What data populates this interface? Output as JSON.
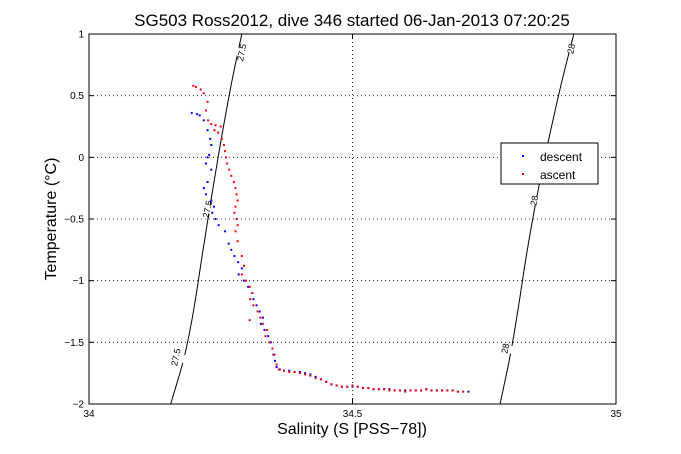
{
  "chart_data": {
    "type": "scatter",
    "title": "SG503 Ross2012, dive 346 started 06-Jan-2013 07:20:25",
    "xlabel": "Salinity (S [PSS−78])",
    "ylabel": "Temperature (°C)",
    "xlim": [
      34,
      35
    ],
    "ylim": [
      -2,
      1
    ],
    "x_ticks": [
      "34",
      "34.5",
      "35"
    ],
    "y_ticks": [
      "1",
      "0.5",
      "0",
      "−0.5",
      "−1",
      "−1.5",
      "−2"
    ],
    "x_tick_values": [
      34,
      34.5,
      35
    ],
    "y_tick_values": [
      1,
      0.5,
      0,
      -0.5,
      -1,
      -1.5,
      -2
    ],
    "grid": true,
    "grid_style": "dotted",
    "legend_position": "right",
    "series": [
      {
        "name": "descent",
        "color": "#0000ff",
        "marker": "dot",
        "points": [
          [
            34.195,
            0.36
          ],
          [
            34.205,
            0.35
          ],
          [
            34.21,
            0.34
          ],
          [
            34.218,
            0.3
          ],
          [
            34.225,
            0.22
          ],
          [
            34.23,
            0.15
          ],
          [
            34.232,
            0.1
          ],
          [
            34.228,
            0.02
          ],
          [
            34.225,
            0.0
          ],
          [
            34.222,
            -0.05
          ],
          [
            34.232,
            -0.1
          ],
          [
            34.225,
            -0.2
          ],
          [
            34.218,
            -0.25
          ],
          [
            34.222,
            -0.3
          ],
          [
            34.232,
            -0.35
          ],
          [
            34.237,
            -0.4
          ],
          [
            34.234,
            -0.45
          ],
          [
            34.24,
            -0.5
          ],
          [
            34.246,
            -0.55
          ],
          [
            34.258,
            -0.6
          ],
          [
            34.265,
            -0.7
          ],
          [
            34.27,
            -0.75
          ],
          [
            34.276,
            -0.8
          ],
          [
            34.283,
            -0.85
          ],
          [
            34.29,
            -0.9
          ],
          [
            34.284,
            -0.95
          ],
          [
            34.294,
            -1.0
          ],
          [
            34.302,
            -1.05
          ],
          [
            34.31,
            -1.1
          ],
          [
            34.312,
            -1.15
          ],
          [
            34.318,
            -1.2
          ],
          [
            34.324,
            -1.25
          ],
          [
            34.33,
            -1.3
          ],
          [
            34.326,
            -1.35
          ],
          [
            34.333,
            -1.4
          ],
          [
            34.34,
            -1.45
          ],
          [
            34.345,
            -1.5
          ],
          [
            34.35,
            -1.6
          ],
          [
            34.353,
            -1.65
          ],
          [
            34.356,
            -1.7
          ],
          [
            34.362,
            -1.72
          ],
          [
            34.37,
            -1.73
          ],
          [
            34.38,
            -1.73
          ],
          [
            34.39,
            -1.74
          ],
          [
            34.4,
            -1.74
          ],
          [
            34.41,
            -1.75
          ],
          [
            34.42,
            -1.76
          ],
          [
            34.43,
            -1.78
          ],
          [
            34.44,
            -1.8
          ],
          [
            34.45,
            -1.82
          ],
          [
            34.46,
            -1.84
          ],
          [
            34.47,
            -1.85
          ],
          [
            34.48,
            -1.86
          ],
          [
            34.49,
            -1.86
          ],
          [
            34.5,
            -1.86
          ],
          [
            34.51,
            -1.86
          ],
          [
            34.52,
            -1.87
          ],
          [
            34.53,
            -1.87
          ],
          [
            34.54,
            -1.88
          ],
          [
            34.55,
            -1.88
          ],
          [
            34.56,
            -1.88
          ],
          [
            34.57,
            -1.88
          ],
          [
            34.58,
            -1.89
          ],
          [
            34.59,
            -1.89
          ],
          [
            34.6,
            -1.89
          ],
          [
            34.61,
            -1.89
          ],
          [
            34.62,
            -1.89
          ],
          [
            34.63,
            -1.89
          ],
          [
            34.64,
            -1.88
          ],
          [
            34.65,
            -1.89
          ],
          [
            34.66,
            -1.89
          ],
          [
            34.67,
            -1.89
          ],
          [
            34.68,
            -1.89
          ],
          [
            34.69,
            -1.89
          ],
          [
            34.7,
            -1.9
          ],
          [
            34.72,
            -1.9
          ]
        ]
      },
      {
        "name": "ascent",
        "color": "#ff0000",
        "marker": "dot",
        "points": [
          [
            34.198,
            0.58
          ],
          [
            34.203,
            0.57
          ],
          [
            34.212,
            0.55
          ],
          [
            34.218,
            0.52
          ],
          [
            34.225,
            0.45
          ],
          [
            34.222,
            0.38
          ],
          [
            34.226,
            0.3
          ],
          [
            34.232,
            0.27
          ],
          [
            34.24,
            0.26
          ],
          [
            34.238,
            0.22
          ],
          [
            34.245,
            0.2
          ],
          [
            34.25,
            0.25
          ],
          [
            34.252,
            0.15
          ],
          [
            34.256,
            0.1
          ],
          [
            34.258,
            0.05
          ],
          [
            34.26,
            0.0
          ],
          [
            34.262,
            -0.05
          ],
          [
            34.266,
            -0.1
          ],
          [
            34.27,
            -0.15
          ],
          [
            34.275,
            -0.2
          ],
          [
            34.278,
            -0.25
          ],
          [
            34.28,
            -0.3
          ],
          [
            34.282,
            -0.35
          ],
          [
            34.278,
            -0.4
          ],
          [
            34.276,
            -0.45
          ],
          [
            34.28,
            -0.5
          ],
          [
            34.282,
            -0.55
          ],
          [
            34.278,
            -0.6
          ],
          [
            34.282,
            -0.68
          ],
          [
            34.29,
            -0.8
          ],
          [
            34.294,
            -0.88
          ],
          [
            34.29,
            -0.95
          ],
          [
            34.298,
            -1.0
          ],
          [
            34.305,
            -1.05
          ],
          [
            34.31,
            -1.1
          ],
          [
            34.306,
            -1.15
          ],
          [
            34.312,
            -1.2
          ],
          [
            34.32,
            -1.25
          ],
          [
            34.325,
            -1.3
          ],
          [
            34.33,
            -1.35
          ],
          [
            34.338,
            -1.4
          ],
          [
            34.335,
            -1.45
          ],
          [
            34.342,
            -1.5
          ],
          [
            34.348,
            -1.55
          ],
          [
            34.352,
            -1.6
          ],
          [
            34.356,
            -1.68
          ],
          [
            34.36,
            -1.72
          ],
          [
            34.37,
            -1.73
          ],
          [
            34.38,
            -1.74
          ],
          [
            34.39,
            -1.74
          ],
          [
            34.4,
            -1.75
          ],
          [
            34.41,
            -1.76
          ],
          [
            34.42,
            -1.77
          ],
          [
            34.43,
            -1.79
          ],
          [
            34.44,
            -1.8
          ],
          [
            34.45,
            -1.82
          ],
          [
            34.46,
            -1.84
          ],
          [
            34.47,
            -1.85
          ],
          [
            34.48,
            -1.86
          ],
          [
            34.49,
            -1.86
          ],
          [
            34.5,
            -1.85
          ],
          [
            34.51,
            -1.86
          ],
          [
            34.52,
            -1.87
          ],
          [
            34.53,
            -1.87
          ],
          [
            34.54,
            -1.88
          ],
          [
            34.55,
            -1.88
          ],
          [
            34.56,
            -1.88
          ],
          [
            34.57,
            -1.89
          ],
          [
            34.58,
            -1.89
          ],
          [
            34.59,
            -1.89
          ],
          [
            34.6,
            -1.9
          ],
          [
            34.61,
            -1.89
          ],
          [
            34.62,
            -1.89
          ],
          [
            34.63,
            -1.89
          ],
          [
            34.64,
            -1.88
          ],
          [
            34.65,
            -1.89
          ],
          [
            34.66,
            -1.89
          ],
          [
            34.67,
            -1.89
          ],
          [
            34.68,
            -1.89
          ],
          [
            34.69,
            -1.89
          ],
          [
            34.7,
            -1.9
          ],
          [
            34.71,
            -1.9
          ],
          [
            34.305,
            -1.32
          ]
        ]
      }
    ],
    "contours": [
      {
        "level": "27.5",
        "color": "#000000",
        "points": [
          [
            34.155,
            -2.0
          ],
          [
            34.19,
            -1.5
          ],
          [
            34.225,
            -0.5
          ],
          [
            34.265,
            0.5
          ],
          [
            34.29,
            1.0
          ]
        ],
        "labels": [
          {
            "text": "27.5",
            "at": [
              34.29,
              0.85
            ]
          },
          {
            "text": "27.5",
            "at": [
              34.225,
              -0.42
            ]
          },
          {
            "text": "27.5",
            "at": [
              34.165,
              -1.62
            ]
          }
        ]
      },
      {
        "level": "28",
        "color": "#000000",
        "points": [
          [
            34.78,
            -2.0
          ],
          [
            34.805,
            -1.5
          ],
          [
            34.84,
            -0.5
          ],
          [
            34.89,
            0.5
          ],
          [
            34.92,
            1.0
          ]
        ],
        "labels": [
          {
            "text": "28",
            "at": [
              34.915,
              0.88
            ]
          },
          {
            "text": "28",
            "at": [
              34.845,
              -0.35
            ]
          },
          {
            "text": "28",
            "at": [
              34.79,
              -1.55
            ]
          }
        ]
      }
    ]
  }
}
